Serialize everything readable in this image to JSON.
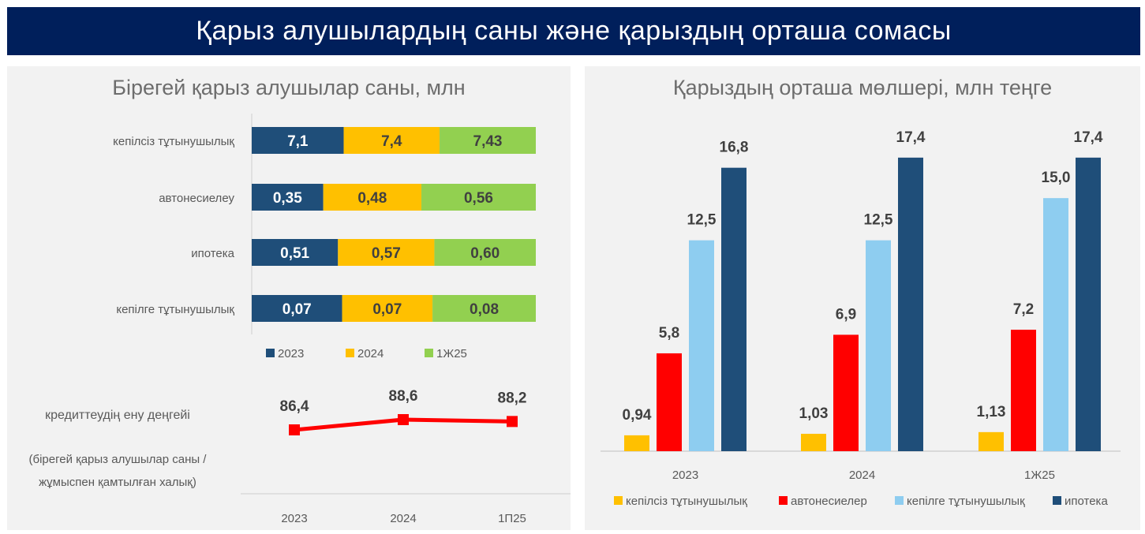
{
  "banner": {
    "title": "Қарыз алушылардың саны және қарыздың орташа сомасы"
  },
  "colors": {
    "banner": "#001f5b",
    "navy": "#1f4e79",
    "yellow": "#ffc000",
    "green": "#92d050",
    "red": "#ff0000",
    "light_blue": "#8ecdf0",
    "panel_bg": "#f2f2f2"
  },
  "chart_data": [
    {
      "type": "bar",
      "orientation": "horizontal-stacked",
      "title": "Бірегей қарыз алушылар саны, млн",
      "categories": [
        "кепілсіз тұтынушылық",
        "автонесиелеу",
        "ипотека",
        "кепілге тұтынушылық"
      ],
      "series": [
        {
          "name": "2023",
          "values": [
            7.1,
            0.35,
            0.51,
            0.07
          ],
          "labels": [
            "7,1",
            "0,35",
            "0,51",
            "0,07"
          ],
          "color": "#1f4e79"
        },
        {
          "name": "2024",
          "values": [
            7.4,
            0.48,
            0.57,
            0.07
          ],
          "labels": [
            "7,4",
            "0,48",
            "0,57",
            "0,07"
          ],
          "color": "#ffc000"
        },
        {
          "name": "1Ж25",
          "values": [
            7.43,
            0.56,
            0.6,
            0.08
          ],
          "labels": [
            "7,43",
            "0,56",
            "0,60",
            "0,08"
          ],
          "color": "#92d050"
        }
      ],
      "stacking": "percent",
      "legend": "bottom"
    },
    {
      "type": "line",
      "title": "кредиттеудің ену деңгейі",
      "subtitle": "(бірегей қарыз алушылар саны / жұмыспен қамтылған халық)",
      "categories": [
        "2023",
        "2024",
        "1П25"
      ],
      "series": [
        {
          "name": "кредиттеудің ену деңгейі",
          "values": [
            86.4,
            88.6,
            88.2
          ],
          "labels": [
            "86,4",
            "88,6",
            "88,2"
          ],
          "color": "#ff0000"
        }
      ]
    },
    {
      "type": "bar",
      "title": "Қарыздың орташа мөлшері, млн теңге",
      "categories": [
        "2023",
        "2024",
        "1Ж25"
      ],
      "series": [
        {
          "name": "кепілсіз тұтынушылық",
          "values": [
            0.94,
            1.03,
            1.13
          ],
          "labels": [
            "0,94",
            "1,03",
            "1,13"
          ],
          "color": "#ffc000"
        },
        {
          "name": "автонесиелер",
          "values": [
            5.8,
            6.9,
            7.2
          ],
          "labels": [
            "5,8",
            "6,9",
            "7,2"
          ],
          "color": "#ff0000"
        },
        {
          "name": "кепілге тұтынушылық",
          "values": [
            12.5,
            12.5,
            15.0
          ],
          "labels": [
            "12,5",
            "12,5",
            "15,0"
          ],
          "color": "#8ecdf0"
        },
        {
          "name": "ипотека",
          "values": [
            16.8,
            17.4,
            17.4
          ],
          "labels": [
            "16,8",
            "17,4",
            "17,4"
          ],
          "color": "#1f4e79"
        }
      ],
      "ylim": [
        0,
        18
      ],
      "legend": "bottom"
    }
  ]
}
